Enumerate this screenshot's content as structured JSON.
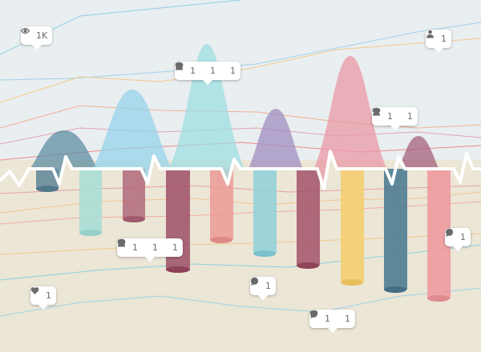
{
  "colors": {
    "sky": "#e9eef0",
    "ground": "#ebe6d6",
    "pulse": "#ffffff",
    "icon": "#6b6b6b"
  },
  "bubbles": [
    {
      "id": "b1",
      "items": [
        {
          "icon": "eye-icon",
          "count": "1K"
        }
      ]
    },
    {
      "id": "b2",
      "items": [
        {
          "icon": "user-icon",
          "count": "1"
        }
      ]
    },
    {
      "id": "b3",
      "items": [
        {
          "icon": "user-icon",
          "count": "1"
        },
        {
          "icon": "heart-icon",
          "count": "1"
        },
        {
          "icon": "comment-icon",
          "count": "1"
        }
      ]
    },
    {
      "id": "b4",
      "items": [
        {
          "icon": "user-icon",
          "count": "1"
        },
        {
          "icon": "heart-icon",
          "count": "1"
        }
      ]
    },
    {
      "id": "b5",
      "items": [
        {
          "icon": "user-icon",
          "count": "1"
        },
        {
          "icon": "heart-icon",
          "count": "1"
        },
        {
          "icon": "comment-icon",
          "count": "1"
        }
      ]
    },
    {
      "id": "b6",
      "items": [
        {
          "icon": "comment-icon",
          "count": "1"
        }
      ]
    },
    {
      "id": "b7",
      "items": [
        {
          "icon": "heart-icon",
          "count": "1"
        }
      ]
    },
    {
      "id": "b8",
      "items": [
        {
          "icon": "comment-icon",
          "count": "1"
        }
      ]
    },
    {
      "id": "b9",
      "items": [
        {
          "icon": "heart-icon",
          "count": "1"
        },
        {
          "icon": "comment-icon",
          "count": "1"
        }
      ]
    }
  ]
}
